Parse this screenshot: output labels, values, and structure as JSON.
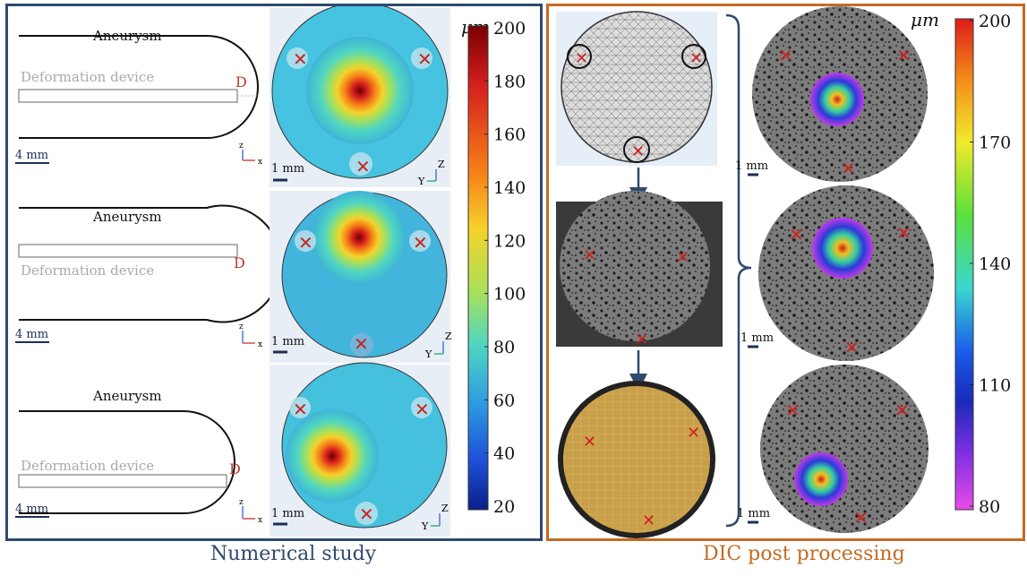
{
  "numerical": {
    "caption": "Numerical study",
    "rows": [
      {
        "aneurysm_label": "Aneurysm",
        "device_label": "Deformation device",
        "d_label": "D",
        "scale_label": "4 mm"
      },
      {
        "aneurysm_label": "Aneurysm",
        "device_label": "Deformation device",
        "d_label": "D",
        "scale_label": "4 mm"
      },
      {
        "aneurysm_label": "Aneurysm",
        "device_label": "Deformation device",
        "d_label": "D",
        "scale_label": "4 mm"
      }
    ],
    "sim_scale_label": "1 mm",
    "axes_xz": {
      "z": "z",
      "x": "x"
    },
    "axes_yz": {
      "z": "Z",
      "y": "Y"
    },
    "colorbar": {
      "unit": "μm",
      "ticks": [
        "200",
        "180",
        "160",
        "140",
        "120",
        "100",
        "80",
        "60",
        "40",
        "20"
      ],
      "colors": [
        "#7a0000",
        "#d41e1e",
        "#f57f17",
        "#f4d22b",
        "#a8e05a",
        "#4fd6c2",
        "#2e9be0",
        "#1d4fd6",
        "#0a1f8a"
      ]
    }
  },
  "dic": {
    "caption": "DIC post processing",
    "scale_label": "1 mm",
    "colorbar": {
      "unit": "μm",
      "ticks": [
        "200",
        "170",
        "140",
        "110",
        "80"
      ],
      "colors": [
        "#e01b1b",
        "#f28a1a",
        "#f1ea2a",
        "#5be03c",
        "#3ad6d0",
        "#1a5ae8",
        "#3f1fd0",
        "#b23ae8",
        "#e94be8"
      ]
    }
  },
  "colors": {
    "left_border": "#2e4a6e",
    "right_border": "#c36b22",
    "marker": "#cc2222",
    "arrow": "#2e4a6e"
  }
}
